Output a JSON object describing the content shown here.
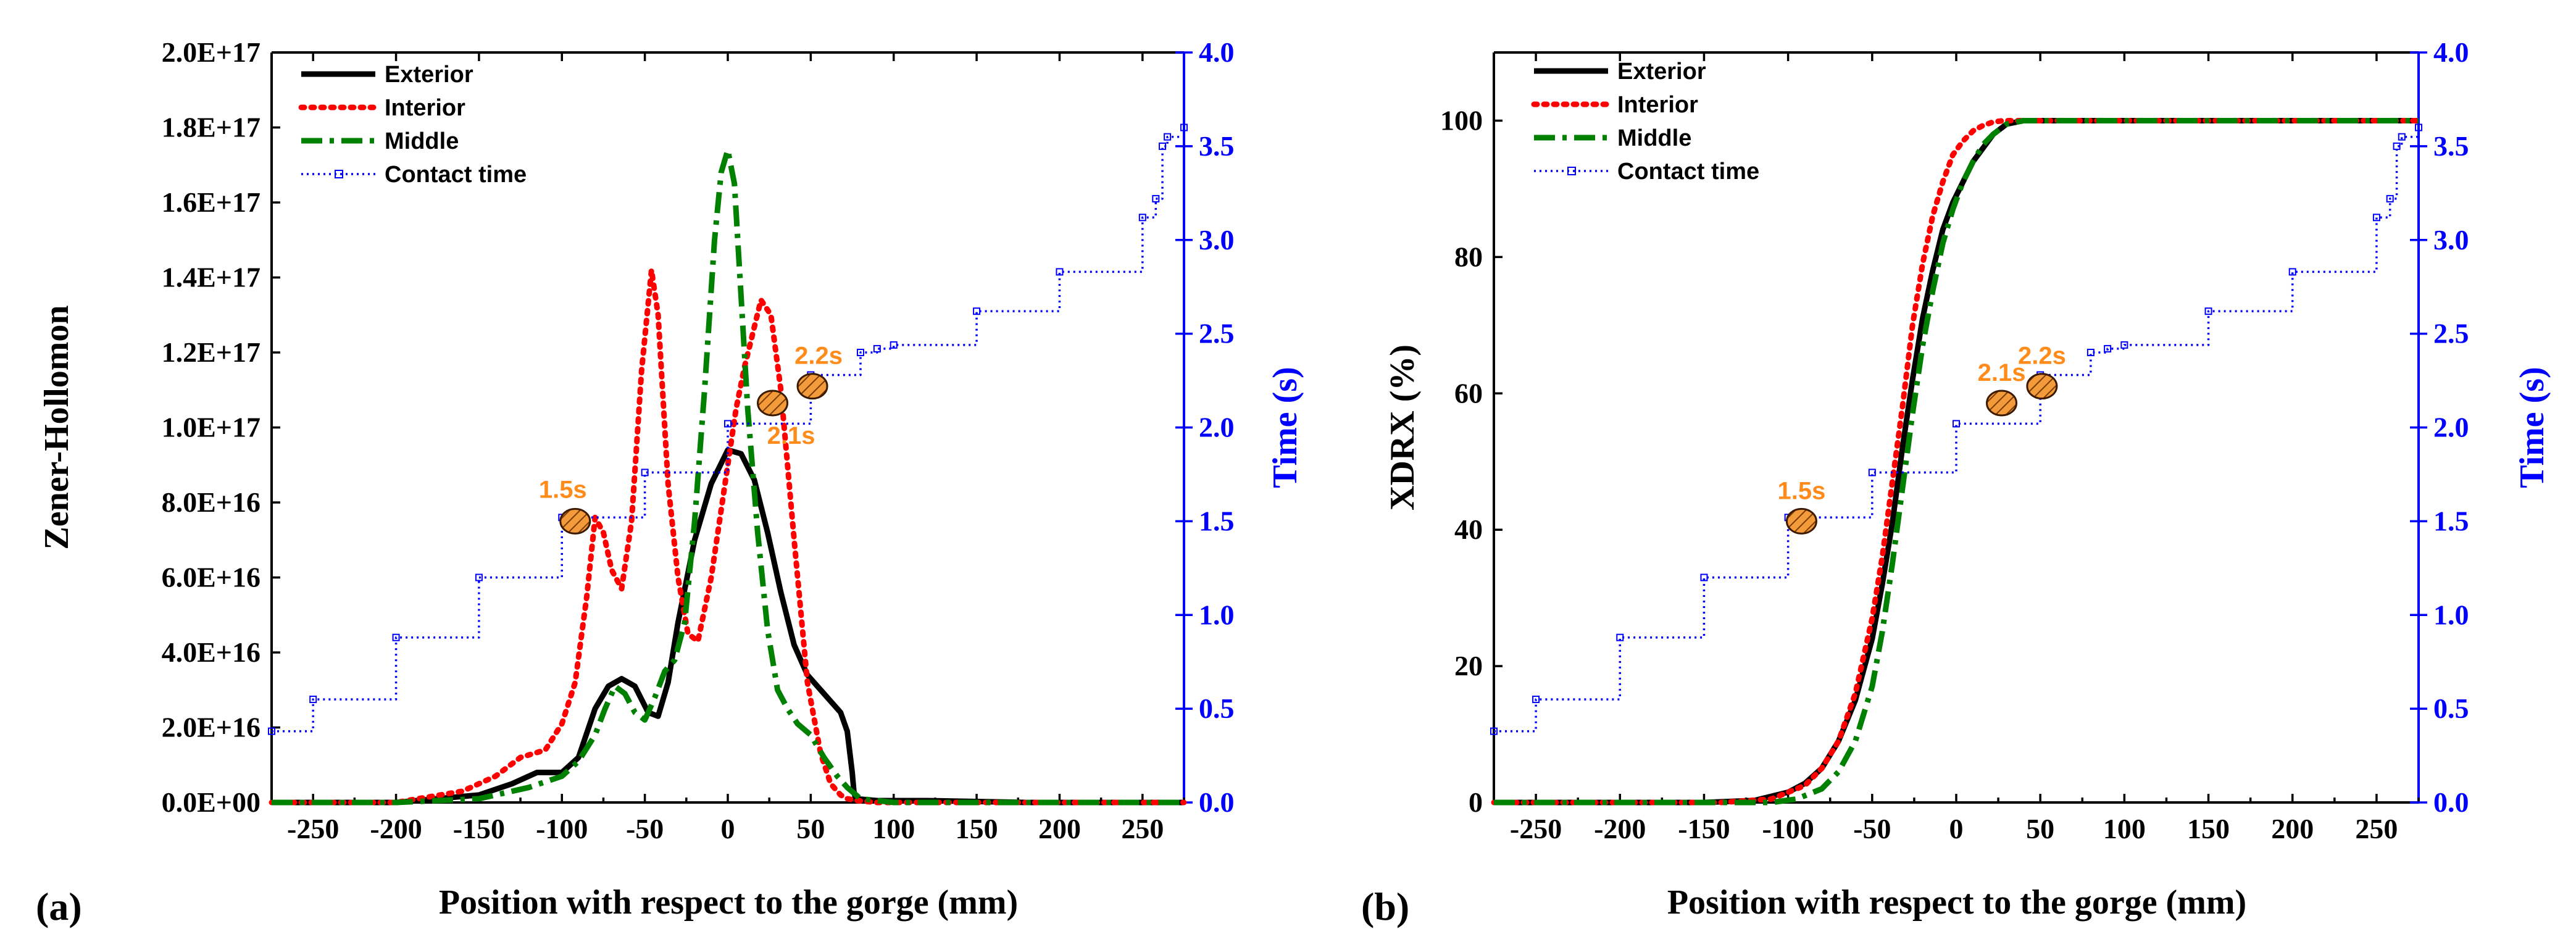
{
  "chart_data": [
    {
      "panel_label": "(a)",
      "type": "line",
      "xlabel": "Position with respect to the gorge (mm)",
      "ylabel": "Zener-Hollomon",
      "y2label": "Time (s)",
      "xlim": [
        -275,
        275
      ],
      "ylim": [
        0,
        2e+17
      ],
      "y2lim": [
        0,
        4.0
      ],
      "x_ticks": [
        -250,
        -200,
        -150,
        -100,
        -50,
        0,
        50,
        100,
        150,
        200,
        250
      ],
      "x_tick_labels": [
        "-250",
        "-200",
        "-150",
        "-100",
        "-50",
        "0",
        "50",
        "100",
        "150",
        "200",
        "250"
      ],
      "y_ticks": [
        0,
        2e+16,
        4e+16,
        6e+16,
        8e+16,
        1e+17,
        1.2e+17,
        1.4e+17,
        1.6e+17,
        1.8e+17,
        2e+17
      ],
      "y_tick_labels": [
        "0.0E+00",
        "2.0E+16",
        "4.0E+16",
        "6.0E+16",
        "8.0E+16",
        "1.0E+17",
        "1.2E+17",
        "1.4E+17",
        "1.6E+17",
        "1.8E+17",
        "2.0E+17"
      ],
      "y2_ticks": [
        0,
        0.5,
        1.0,
        1.5,
        2.0,
        2.5,
        3.0,
        3.5,
        4.0
      ],
      "y2_tick_labels": [
        "0.0",
        "0.5",
        "1.0",
        "1.5",
        "2.0",
        "2.5",
        "3.0",
        "3.5",
        "4.0"
      ],
      "series": [
        {
          "name": "Exterior",
          "color": "#000000",
          "style": "solid",
          "axis": "left",
          "x": [
            -275,
            -200,
            -150,
            -130,
            -115,
            -100,
            -90,
            -80,
            -72,
            -64,
            -56,
            -48,
            -42,
            -36,
            -30,
            -20,
            -10,
            0,
            8,
            16,
            24,
            32,
            40,
            48,
            56,
            62,
            68,
            72,
            75,
            76,
            77,
            90,
            120,
            180,
            275
          ],
          "y": [
            0,
            0,
            2000000000000000.0,
            5000000000000000.0,
            8000000000000000.0,
            8000000000000000.0,
            1.2e+16,
            2.5e+16,
            3.1e+16,
            3.3e+16,
            3.1e+16,
            2.4e+16,
            2.3e+16,
            3.2e+16,
            4.8e+16,
            7e+16,
            8.5e+16,
            9.4e+16,
            9.3e+16,
            8.6e+16,
            7.2e+16,
            5.6e+16,
            4.2e+16,
            3.4e+16,
            3e+16,
            2.7e+16,
            2.4e+16,
            1.9e+16,
            8000000000000000.0,
            3000000000000000.0,
            1000000000000000.0,
            500000000000000.0,
            500000000000000.0,
            0,
            0
          ]
        },
        {
          "name": "Interior",
          "color": "#ff0000",
          "style": "dotted",
          "axis": "left",
          "x": [
            -275,
            -200,
            -160,
            -140,
            -125,
            -110,
            -100,
            -92,
            -85,
            -80,
            -75,
            -70,
            -64,
            -58,
            -52,
            -46,
            -42,
            -36,
            -30,
            -24,
            -18,
            -10,
            0,
            5,
            10,
            15,
            20,
            26,
            32,
            40,
            48,
            56,
            62,
            68,
            72,
            78,
            90,
            150,
            275
          ],
          "y": [
            0,
            0,
            3000000000000000.0,
            7000000000000000.0,
            1.2e+16,
            1.4e+16,
            2.1e+16,
            3.2e+16,
            5.5e+16,
            7.6e+16,
            7.2e+16,
            6.2e+16,
            5.7e+16,
            7.5e+16,
            1.15e+17,
            1.42e+17,
            1.3e+17,
            8.5e+16,
            6e+16,
            4.5e+16,
            4.3e+16,
            6e+16,
            9e+16,
            1.05e+17,
            1.16e+17,
            1.25e+17,
            1.34e+17,
            1.3e+17,
            1.1e+17,
            7e+16,
            3.2e+16,
            1.3e+16,
            5000000000000000.0,
            2000000000000000.0,
            1000000000000000.0,
            500000000000000.0,
            0,
            0,
            0
          ]
        },
        {
          "name": "Middle",
          "color": "#008000",
          "style": "dashdot",
          "axis": "left",
          "x": [
            -275,
            -200,
            -150,
            -120,
            -100,
            -90,
            -80,
            -74,
            -68,
            -62,
            -56,
            -50,
            -44,
            -38,
            -32,
            -26,
            -20,
            -14,
            -8,
            -4,
            0,
            4,
            8,
            12,
            18,
            24,
            30,
            36,
            42,
            50,
            58,
            66,
            72,
            80,
            100,
            275
          ],
          "y": [
            0,
            0,
            1000000000000000.0,
            4000000000000000.0,
            7000000000000000.0,
            1.1e+16,
            1.8e+16,
            2.5e+16,
            3.1e+16,
            2.9e+16,
            2.4e+16,
            2.2e+16,
            2.8e+16,
            3.5e+16,
            3.8e+16,
            4.8e+16,
            7.5e+16,
            1.1e+17,
            1.5e+17,
            1.68e+17,
            1.74e+17,
            1.65e+17,
            1.35e+17,
            1.05e+17,
            7.2e+16,
            4.6e+16,
            3e+16,
            2.5e+16,
            2.1e+16,
            1.8e+16,
            1.2e+16,
            7000000000000000.0,
            4000000000000000.0,
            1000000000000000.0,
            0,
            0
          ]
        },
        {
          "name": "Contact time",
          "color": "#0000ff",
          "style": "dotted-marker",
          "axis": "right",
          "x": [
            -275,
            -250,
            -200,
            -150,
            -100,
            -50,
            0,
            50,
            80,
            90,
            100,
            150,
            200,
            250,
            258,
            262,
            265,
            275
          ],
          "y": [
            0.38,
            0.55,
            0.88,
            1.2,
            1.52,
            1.76,
            2.02,
            2.28,
            2.4,
            2.42,
            2.44,
            2.62,
            2.83,
            3.12,
            3.22,
            3.5,
            3.55,
            3.6
          ]
        }
      ],
      "annotations": [
        {
          "text": "1.5s",
          "x": -92,
          "y2": 1.5
        },
        {
          "text": "2.1s",
          "x": 27,
          "y2": 2.13
        },
        {
          "text": "2.2s",
          "x": 51,
          "y2": 2.22
        }
      ]
    },
    {
      "panel_label": "(b)",
      "type": "line",
      "xlabel": "Position with respect to the gorge (mm)",
      "ylabel": "XDRX (%)",
      "y2label": "Time (s)",
      "xlim": [
        -275,
        275
      ],
      "ylim": [
        0,
        110
      ],
      "y2lim": [
        0,
        4.0
      ],
      "x_ticks": [
        -250,
        -200,
        -150,
        -100,
        -50,
        0,
        50,
        100,
        150,
        200,
        250
      ],
      "x_tick_labels": [
        "-250",
        "-200",
        "-150",
        "-100",
        "-50",
        "0",
        "50",
        "100",
        "150",
        "200",
        "250"
      ],
      "y_ticks": [
        0,
        20,
        40,
        60,
        80,
        100
      ],
      "y_tick_labels": [
        "0",
        "20",
        "40",
        "60",
        "80",
        "100"
      ],
      "y2_ticks": [
        0,
        0.5,
        1.0,
        1.5,
        2.0,
        2.5,
        3.0,
        3.5,
        4.0
      ],
      "y2_tick_labels": [
        "0.0",
        "0.5",
        "1.0",
        "1.5",
        "2.0",
        "2.5",
        "3.0",
        "3.5",
        "4.0"
      ],
      "series": [
        {
          "name": "Exterior",
          "color": "#000000",
          "style": "solid",
          "axis": "left",
          "x": [
            -275,
            -150,
            -120,
            -100,
            -90,
            -80,
            -70,
            -60,
            -50,
            -44,
            -38,
            -32,
            -26,
            -20,
            -14,
            -8,
            -2,
            4,
            10,
            16,
            22,
            30,
            40,
            60,
            275
          ],
          "y": [
            0,
            0,
            0.3,
            1.5,
            2.8,
            5,
            9,
            15,
            24,
            32,
            41,
            52,
            62,
            71,
            78,
            84,
            88,
            91,
            94,
            96,
            98,
            99.5,
            100,
            100,
            100
          ]
        },
        {
          "name": "Interior",
          "color": "#ff0000",
          "style": "dotted",
          "axis": "left",
          "x": [
            -275,
            -140,
            -110,
            -90,
            -80,
            -70,
            -60,
            -50,
            -44,
            -38,
            -32,
            -26,
            -20,
            -14,
            -8,
            -2,
            4,
            10,
            16,
            22,
            28,
            40,
            275
          ],
          "y": [
            0,
            0,
            0.5,
            2.5,
            5,
            9,
            16,
            27,
            36,
            47,
            58,
            70,
            79,
            86,
            91,
            95,
            97,
            98.5,
            99.3,
            99.8,
            100,
            100,
            100
          ]
        },
        {
          "name": "Middle",
          "color": "#008000",
          "style": "dashdot",
          "axis": "left",
          "x": [
            -275,
            -110,
            -95,
            -80,
            -70,
            -60,
            -50,
            -44,
            -38,
            -32,
            -26,
            -20,
            -14,
            -8,
            -2,
            4,
            10,
            16,
            22,
            30,
            40,
            60,
            275
          ],
          "y": [
            0,
            0,
            0.5,
            2,
            4.5,
            9,
            17,
            25,
            35,
            46,
            57,
            67,
            75,
            82,
            87,
            91,
            94,
            96.5,
            98,
            99.5,
            100,
            100,
            100
          ]
        },
        {
          "name": "Contact time",
          "color": "#0000ff",
          "style": "dotted-marker",
          "axis": "right",
          "x": [
            -275,
            -250,
            -200,
            -150,
            -100,
            -50,
            0,
            50,
            80,
            90,
            100,
            150,
            200,
            250,
            258,
            262,
            265,
            275
          ],
          "y": [
            0.38,
            0.55,
            0.88,
            1.2,
            1.52,
            1.76,
            2.02,
            2.28,
            2.4,
            2.42,
            2.44,
            2.62,
            2.83,
            3.12,
            3.22,
            3.5,
            3.55,
            3.6
          ]
        }
      ],
      "annotations": [
        {
          "text": "1.5s",
          "x": -92,
          "y2": 1.5
        },
        {
          "text": "2.1s",
          "x": 27,
          "y2": 2.13
        },
        {
          "text": "2.2s",
          "x": 51,
          "y2": 2.22
        }
      ]
    }
  ]
}
